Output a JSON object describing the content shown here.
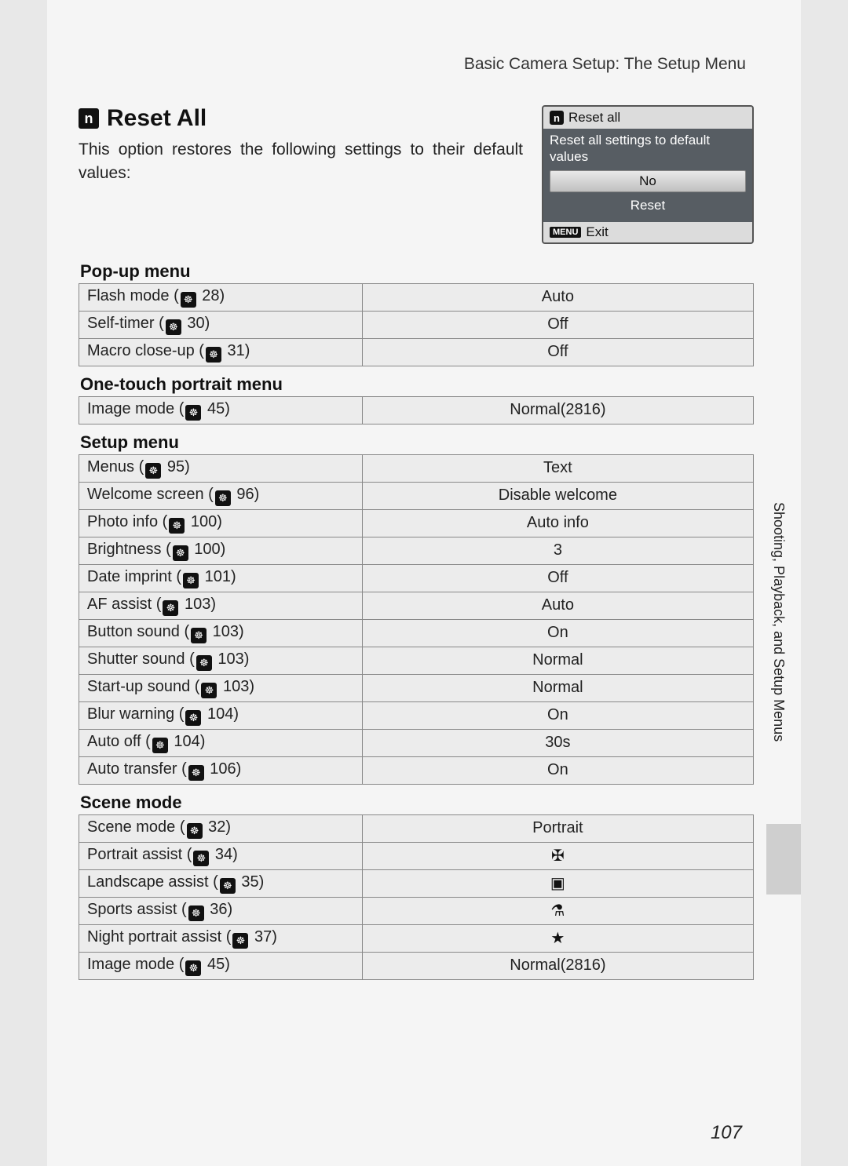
{
  "breadcrumb": "Basic Camera Setup: The Setup Menu",
  "headline": {
    "icon_letter": "n",
    "title": "Reset All",
    "description": "This option restores the following settings to their default values:"
  },
  "lcd": {
    "icon_letter": "n",
    "title": "Reset all",
    "message": "Reset all settings to default values",
    "option_no": "No",
    "option_reset": "Reset",
    "menu_badge": "MENU",
    "exit_label": "Exit"
  },
  "sections": [
    {
      "title": "Pop-up menu",
      "rows": [
        {
          "label": "Flash mode",
          "page": "28",
          "value": "Auto"
        },
        {
          "label": "Self-timer",
          "page": "30",
          "value": "Off"
        },
        {
          "label": "Macro close-up",
          "page": "31",
          "value": "Off"
        }
      ]
    },
    {
      "title": "One-touch portrait menu",
      "rows": [
        {
          "label": "Image mode",
          "page": "45",
          "value": "Normal(2816)"
        }
      ]
    },
    {
      "title": "Setup menu",
      "rows": [
        {
          "label": "Menus",
          "page": "95",
          "value": "Text"
        },
        {
          "label": "Welcome screen",
          "page": "96",
          "value": "Disable welcome"
        },
        {
          "label": "Photo info",
          "page": "100",
          "value": "Auto info"
        },
        {
          "label": "Brightness",
          "page": "100",
          "value": "3"
        },
        {
          "label": "Date imprint",
          "page": "101",
          "value": "Off"
        },
        {
          "label": "AF assist",
          "page": "103",
          "value": "Auto"
        },
        {
          "label": "Button sound",
          "page": "103",
          "value": "On"
        },
        {
          "label": "Shutter sound",
          "page": "103",
          "value": "Normal"
        },
        {
          "label": "Start-up sound",
          "page": "103",
          "value": "Normal"
        },
        {
          "label": "Blur warning",
          "page": "104",
          "value": "On"
        },
        {
          "label": "Auto off",
          "page": "104",
          "value": "30s"
        },
        {
          "label": "Auto transfer",
          "page": "106",
          "value": "On"
        }
      ]
    },
    {
      "title": "Scene mode",
      "rows": [
        {
          "label": "Scene mode",
          "page": "32",
          "value": "Portrait"
        },
        {
          "label": "Portrait assist",
          "page": "34",
          "value_icon": "portrait"
        },
        {
          "label": "Landscape assist",
          "page": "35",
          "value_icon": "landscape"
        },
        {
          "label": "Sports assist",
          "page": "36",
          "value_icon": "sports"
        },
        {
          "label": "Night portrait assist",
          "page": "37",
          "value_icon": "night"
        },
        {
          "label": "Image mode",
          "page": "45",
          "value": "Normal(2816)"
        }
      ]
    }
  ],
  "icons": {
    "portrait": "✠",
    "landscape": "▣",
    "sports": "⚗",
    "night": "★"
  },
  "side_text": "Shooting, Playback, and Setup Menus",
  "page_number": "107",
  "paren_open": "(",
  "paren_close": ")",
  "space": " "
}
